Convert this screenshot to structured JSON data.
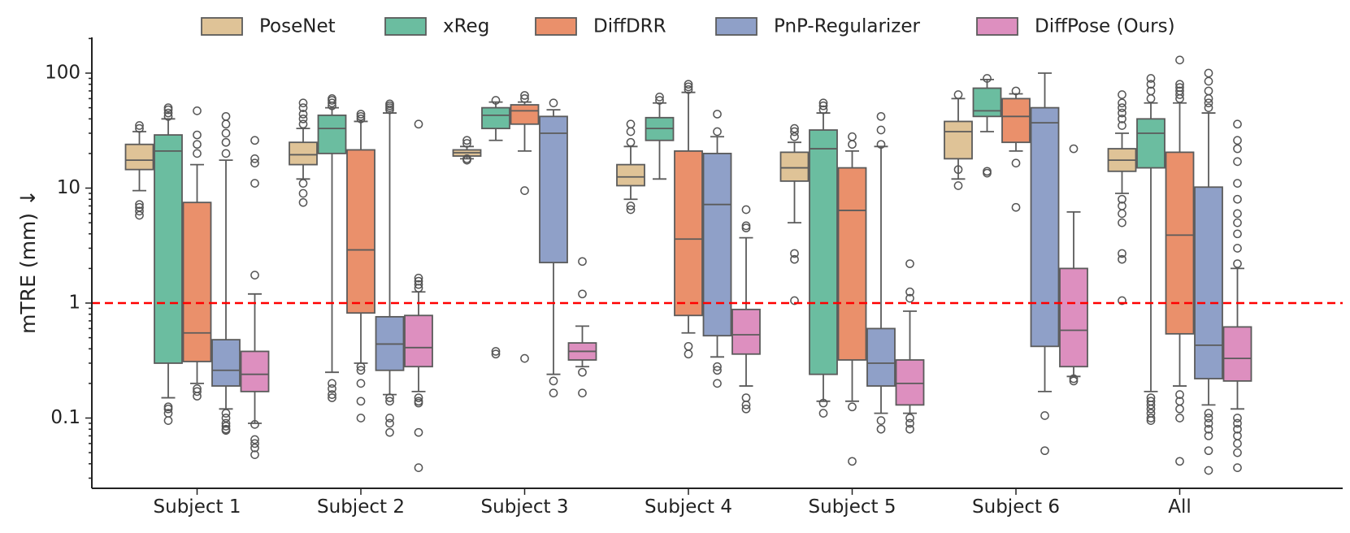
{
  "chart_data": {
    "type": "box",
    "xlabel": "",
    "ylabel": "mTRE (mm) ↓",
    "yscale": "log",
    "ylim": [
      0.025,
      200
    ],
    "yticks": [
      0.1,
      1,
      10,
      100
    ],
    "ytick_labels": [
      "0.1",
      "1",
      "10",
      "100"
    ],
    "reference_line": {
      "y": 1,
      "color": "#ff0000",
      "style": "dashed"
    },
    "legend_position": "top",
    "categories": [
      "Subject 1",
      "Subject 2",
      "Subject 3",
      "Subject 4",
      "Subject 5",
      "Subject 6",
      "All"
    ],
    "series": [
      {
        "name": "PoseNet",
        "color": "#dfc397",
        "boxes": [
          {
            "q1": 14.5,
            "median": 17.5,
            "q3": 24,
            "whislo": 9.5,
            "whishi": 31,
            "fliers": [
              5.8,
              6.3,
              6.8,
              7.2,
              33,
              35
            ]
          },
          {
            "q1": 16,
            "median": 19.5,
            "q3": 25,
            "whislo": 12,
            "whishi": 33,
            "fliers": [
              7.5,
              9,
              11,
              36,
              40,
              44,
              50,
              55
            ]
          },
          {
            "q1": 19,
            "median": 20.3,
            "q3": 21.5,
            "whislo": 18,
            "whishi": 23,
            "fliers": [
              17.5,
              18,
              24.5,
              26
            ]
          },
          {
            "q1": 10.5,
            "median": 12.5,
            "q3": 16,
            "whislo": 8,
            "whishi": 23,
            "fliers": [
              6.5,
              7,
              25,
              31,
              36
            ]
          },
          {
            "q1": 11.5,
            "median": 15,
            "q3": 20.5,
            "whislo": 5,
            "whishi": 25,
            "fliers": [
              1.05,
              2.4,
              2.7,
              28,
              31,
              33
            ]
          },
          {
            "q1": 18,
            "median": 31,
            "q3": 38,
            "whislo": 12,
            "whishi": 60,
            "fliers": [
              10.5,
              14.5,
              65
            ]
          },
          {
            "q1": 14,
            "median": 17.5,
            "q3": 22,
            "whislo": 9,
            "whishi": 30,
            "fliers": [
              1.05,
              2.4,
              2.7,
              5,
              6,
              7,
              8,
              35,
              40,
              45,
              50,
              55,
              65
            ]
          }
        ]
      },
      {
        "name": "xReg",
        "color": "#6bbda0",
        "boxes": [
          {
            "q1": 0.3,
            "median": 21,
            "q3": 29,
            "whislo": 0.15,
            "whishi": 40,
            "fliers": [
              0.095,
              0.11,
              0.12,
              0.125,
              42,
              45,
              48,
              50
            ]
          },
          {
            "q1": 20,
            "median": 33,
            "q3": 43,
            "whislo": 0.25,
            "whishi": 50,
            "fliers": [
              0.15,
              0.16,
              0.18,
              0.2,
              52,
              55,
              58,
              60
            ]
          },
          {
            "q1": 33,
            "median": 43,
            "q3": 50,
            "whislo": 26,
            "whishi": 56,
            "fliers": [
              0.36,
              0.38,
              58
            ]
          },
          {
            "q1": 26,
            "median": 33,
            "q3": 41,
            "whislo": 12,
            "whishi": 55,
            "fliers": [
              58,
              62
            ]
          },
          {
            "q1": 0.24,
            "median": 22,
            "q3": 32,
            "whislo": 0.14,
            "whishi": 45,
            "fliers": [
              0.11,
              0.135,
              48,
              52,
              55
            ]
          },
          {
            "q1": 42,
            "median": 47,
            "q3": 74,
            "whislo": 31,
            "whishi": 88,
            "fliers": [
              13.5,
              14,
              90
            ]
          },
          {
            "q1": 15,
            "median": 30,
            "q3": 40,
            "whislo": 0.17,
            "whishi": 55,
            "fliers": [
              0.095,
              0.1,
              0.11,
              0.12,
              0.13,
              0.14,
              0.15,
              60,
              70,
              80,
              90
            ]
          }
        ]
      },
      {
        "name": "DiffDRR",
        "color": "#ea906b",
        "boxes": [
          {
            "q1": 0.31,
            "median": 0.55,
            "q3": 7.5,
            "whislo": 0.2,
            "whishi": 16,
            "fliers": [
              0.155,
              0.17,
              0.18,
              20,
              24,
              29,
              47
            ]
          },
          {
            "q1": 0.82,
            "median": 2.9,
            "q3": 21.5,
            "whislo": 0.3,
            "whishi": 38,
            "fliers": [
              0.1,
              0.14,
              0.2,
              0.26,
              0.28,
              40,
              42,
              44
            ]
          },
          {
            "q1": 36,
            "median": 47,
            "q3": 53,
            "whislo": 21,
            "whishi": 56,
            "fliers": [
              0.33,
              9.5,
              60,
              64
            ]
          },
          {
            "q1": 0.78,
            "median": 3.6,
            "q3": 21,
            "whislo": 0.55,
            "whishi": 68,
            "fliers": [
              0.36,
              0.42,
              72,
              76,
              80
            ]
          },
          {
            "q1": 0.32,
            "median": 6.4,
            "q3": 15,
            "whislo": 0.14,
            "whishi": 21,
            "fliers": [
              0.042,
              0.125,
              24,
              28
            ]
          },
          {
            "q1": 25,
            "median": 42,
            "q3": 60,
            "whislo": 21,
            "whishi": 66,
            "fliers": [
              6.8,
              16.5,
              70
            ]
          },
          {
            "q1": 0.54,
            "median": 3.9,
            "q3": 20.5,
            "whislo": 0.19,
            "whishi": 55,
            "fliers": [
              0.042,
              0.1,
              0.12,
              0.14,
              0.16,
              60,
              65,
              70,
              75,
              80,
              130
            ]
          }
        ]
      },
      {
        "name": "PnP-Regularizer",
        "color": "#8fa0c8",
        "boxes": [
          {
            "q1": 0.19,
            "median": 0.26,
            "q3": 0.48,
            "whislo": 0.12,
            "whishi": 17.5,
            "fliers": [
              0.078,
              0.08,
              0.085,
              0.09,
              0.1,
              0.11,
              20,
              25,
              30,
              36,
              42
            ]
          },
          {
            "q1": 0.26,
            "median": 0.44,
            "q3": 0.76,
            "whislo": 0.16,
            "whishi": 45,
            "fliers": [
              0.075,
              0.09,
              0.1,
              0.14,
              0.15,
              48,
              50,
              52,
              54
            ]
          },
          {
            "q1": 2.25,
            "median": 30,
            "q3": 42,
            "whislo": 0.24,
            "whishi": 48,
            "fliers": [
              0.165,
              0.21,
              55
            ]
          },
          {
            "q1": 0.52,
            "median": 7.2,
            "q3": 20,
            "whislo": 0.34,
            "whishi": 28,
            "fliers": [
              0.2,
              0.26,
              0.28,
              31,
              44
            ]
          },
          {
            "q1": 0.19,
            "median": 0.3,
            "q3": 0.6,
            "whislo": 0.11,
            "whishi": 23,
            "fliers": [
              0.08,
              0.095,
              24,
              32,
              42
            ]
          },
          {
            "q1": 0.42,
            "median": 37,
            "q3": 50,
            "whislo": 0.17,
            "whishi": 100,
            "fliers": [
              0.052,
              0.105
            ]
          },
          {
            "q1": 0.22,
            "median": 0.43,
            "q3": 10.2,
            "whislo": 0.13,
            "whishi": 45,
            "fliers": [
              0.035,
              0.052,
              0.07,
              0.08,
              0.09,
              0.1,
              0.11,
              50,
              55,
              60,
              70,
              85,
              100
            ]
          }
        ]
      },
      {
        "name": "DiffPose (Ours)",
        "color": "#dd8fbf",
        "boxes": [
          {
            "q1": 0.17,
            "median": 0.24,
            "q3": 0.38,
            "whislo": 0.09,
            "whishi": 1.2,
            "fliers": [
              0.048,
              0.055,
              0.06,
              0.065,
              0.088,
              1.75,
              11,
              16.5,
              18,
              26
            ]
          },
          {
            "q1": 0.28,
            "median": 0.41,
            "q3": 0.78,
            "whislo": 0.17,
            "whishi": 1.25,
            "fliers": [
              0.037,
              0.075,
              0.135,
              0.14,
              0.15,
              1.35,
              1.45,
              1.55,
              1.65,
              36
            ]
          },
          {
            "q1": 0.32,
            "median": 0.38,
            "q3": 0.45,
            "whislo": 0.28,
            "whishi": 0.63,
            "fliers": [
              0.165,
              0.25,
              1.2,
              2.3
            ]
          },
          {
            "q1": 0.36,
            "median": 0.53,
            "q3": 0.88,
            "whislo": 0.19,
            "whishi": 3.7,
            "fliers": [
              0.12,
              0.13,
              0.15,
              4.5,
              4.7,
              6.5
            ]
          },
          {
            "q1": 0.13,
            "median": 0.2,
            "q3": 0.32,
            "whislo": 0.11,
            "whishi": 0.85,
            "fliers": [
              0.08,
              0.09,
              0.1,
              1.1,
              1.25,
              2.2
            ]
          },
          {
            "q1": 0.28,
            "median": 0.58,
            "q3": 2.0,
            "whislo": 0.23,
            "whishi": 6.2,
            "fliers": [
              0.21,
              0.22,
              22
            ]
          },
          {
            "q1": 0.21,
            "median": 0.33,
            "q3": 0.62,
            "whislo": 0.12,
            "whishi": 2.0,
            "fliers": [
              0.037,
              0.05,
              0.06,
              0.07,
              0.08,
              0.09,
              0.1,
              2.2,
              3,
              4,
              5,
              6,
              8,
              11,
              17,
              22,
              26,
              36
            ]
          }
        ]
      }
    ]
  }
}
